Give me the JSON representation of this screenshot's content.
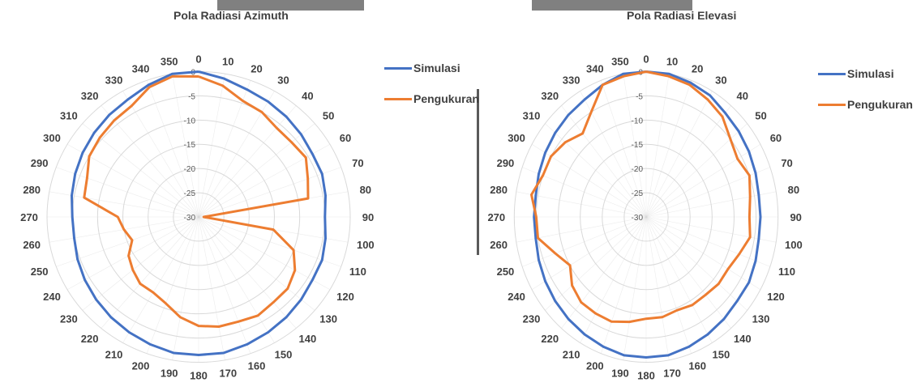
{
  "colors": {
    "simulasi": "#4472c4",
    "pengukuran": "#ed7d31",
    "grid": "#d9d9d9",
    "text": "#404040"
  },
  "chart_data": [
    {
      "type": "polar-line",
      "title": "Pola Radiasi Azimuth",
      "angle_labels": [
        "0",
        "10",
        "20",
        "30",
        "40",
        "50",
        "60",
        "70",
        "80",
        "90",
        "100",
        "110",
        "120",
        "130",
        "140",
        "150",
        "160",
        "170",
        "180",
        "190",
        "200",
        "210",
        "220",
        "230",
        "240",
        "250",
        "260",
        "270",
        "280",
        "290",
        "300",
        "310",
        "320",
        "330",
        "340",
        "350"
      ],
      "radial_labels": [
        "0",
        "-5",
        "-10",
        "-15",
        "-20",
        "-25",
        "-30"
      ],
      "rlim": [
        -30,
        0
      ],
      "angles": [
        0,
        10,
        20,
        30,
        40,
        50,
        60,
        70,
        80,
        90,
        100,
        110,
        120,
        130,
        140,
        150,
        160,
        170,
        180,
        190,
        200,
        210,
        220,
        230,
        240,
        250,
        260,
        270,
        280,
        290,
        300,
        310,
        320,
        330,
        340,
        350
      ],
      "legend_position": "right",
      "grid": true,
      "series": [
        {
          "name": "Simulasi",
          "color": "#4472c4",
          "values": [
            0,
            -1,
            -2,
            -2.5,
            -3,
            -3.5,
            -4,
            -4,
            -4.5,
            -5,
            -4.5,
            -4,
            -4,
            -3.5,
            -3,
            -2.5,
            -2,
            -1.5,
            -1.5,
            -1.5,
            -2,
            -2.5,
            -3,
            -3.5,
            -4,
            -4.5,
            -5,
            -5,
            -4.5,
            -4,
            -3.5,
            -3,
            -2.5,
            -2,
            -1,
            0
          ]
        },
        {
          "name": "Pengukuran",
          "color": "#ed7d31",
          "values": [
            -1,
            -2.5,
            -4.5,
            -5,
            -6,
            -6,
            -5.5,
            -7,
            -8,
            -29,
            -15,
            -10,
            -8,
            -7,
            -7,
            -6.5,
            -7,
            -7,
            -7.5,
            -9,
            -11,
            -12,
            -12,
            -13,
            -14,
            -16,
            -15,
            -14,
            -7,
            -6.5,
            -5,
            -4.5,
            -4,
            -3.5,
            -1.5,
            -0.5
          ]
        }
      ]
    },
    {
      "type": "polar-line",
      "title": "Pola Radiasi Elevasi",
      "angle_labels": [
        "0",
        "10",
        "20",
        "30",
        "40",
        "50",
        "60",
        "70",
        "80",
        "90",
        "100",
        "110",
        "120",
        "130",
        "140",
        "150",
        "160",
        "170",
        "180",
        "190",
        "200",
        "210",
        "220",
        "230",
        "240",
        "250",
        "260",
        "270",
        "280",
        "290",
        "300",
        "310",
        "320",
        "330",
        "340",
        "350"
      ],
      "radial_labels": [
        "0",
        "-5",
        "-10",
        "-15",
        "-20",
        "-25",
        "-30"
      ],
      "rlim": [
        -30,
        0
      ],
      "angles": [
        0,
        10,
        20,
        30,
        40,
        50,
        60,
        70,
        80,
        90,
        100,
        110,
        120,
        130,
        140,
        150,
        160,
        170,
        180,
        190,
        200,
        210,
        220,
        230,
        240,
        250,
        260,
        270,
        280,
        290,
        300,
        310,
        320,
        330,
        340,
        350
      ],
      "legend_position": "right",
      "grid": true,
      "series": [
        {
          "name": "Simulasi",
          "color": "#4472c4",
          "values": [
            0,
            0,
            -0.5,
            -1,
            -2,
            -2.5,
            -3,
            -3.5,
            -4,
            -4,
            -4,
            -3.5,
            -3,
            -3,
            -2.5,
            -2,
            -1.5,
            -1,
            -1,
            -1,
            -1.5,
            -2,
            -2.5,
            -3,
            -3.5,
            -4,
            -4.5,
            -4.5,
            -4.5,
            -4,
            -3.5,
            -3,
            -2.5,
            -2,
            -1,
            0
          ]
        },
        {
          "name": "Pengukuran",
          "color": "#ed7d31",
          "values": [
            0,
            -0.5,
            -1,
            -2,
            -3,
            -5,
            -6,
            -5,
            -6,
            -6.5,
            -6,
            -7.5,
            -8.5,
            -8.5,
            -9,
            -9,
            -9.5,
            -9,
            -9,
            -8,
            -7,
            -7,
            -7,
            -8,
            -10,
            -8,
            -5,
            -5,
            -3.5,
            -5,
            -5,
            -6,
            -7.5,
            -5,
            -1,
            -0.5
          ]
        }
      ]
    }
  ]
}
